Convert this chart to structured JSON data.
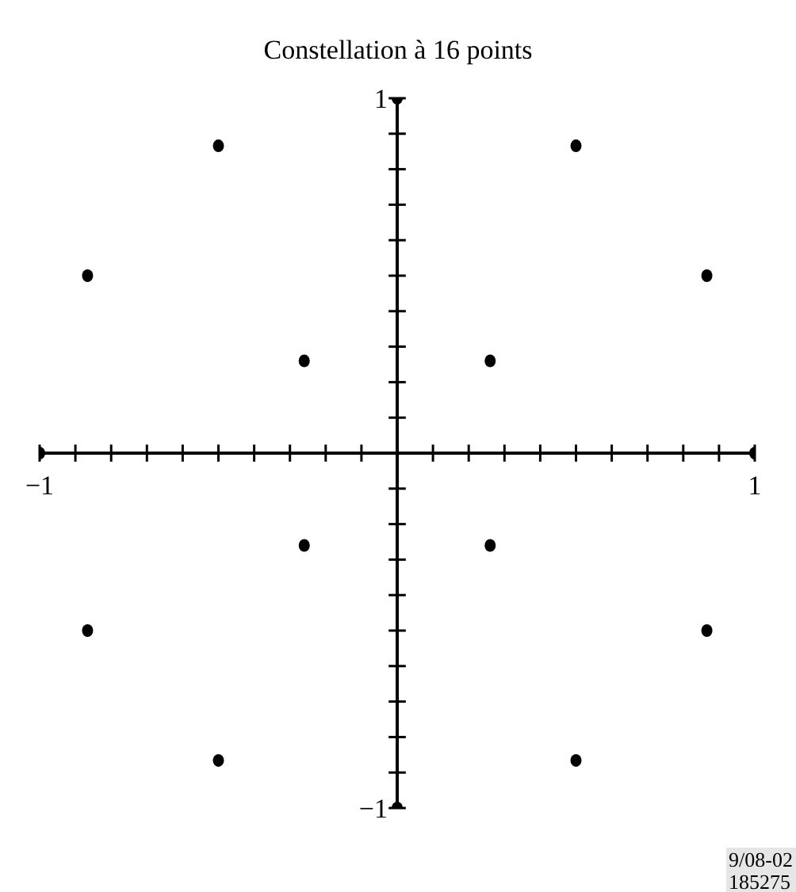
{
  "chart_data": {
    "type": "scatter",
    "title": "Constellation à 16 points",
    "x": [
      0,
      0.5,
      0.866,
      1,
      0.866,
      0.5,
      0,
      -0.5,
      -0.866,
      -1,
      -0.866,
      -0.5,
      0.26,
      0.26,
      -0.26,
      -0.26
    ],
    "values": [
      1,
      0.866,
      0.5,
      0,
      -0.5,
      -0.866,
      -1,
      -0.866,
      -0.5,
      0,
      0.5,
      0.866,
      0.26,
      -0.26,
      -0.26,
      0.26
    ],
    "color": "#000000",
    "marker": "circle",
    "xlim": [
      -1,
      1
    ],
    "ylim": [
      -1,
      1
    ],
    "xticks": [
      {
        "value": -1,
        "label": "−1"
      },
      {
        "value": -0.9,
        "label": null
      },
      {
        "value": -0.8,
        "label": null
      },
      {
        "value": -0.7,
        "label": null
      },
      {
        "value": -0.6,
        "label": null
      },
      {
        "value": -0.5,
        "label": null
      },
      {
        "value": -0.4,
        "label": null
      },
      {
        "value": -0.3,
        "label": null
      },
      {
        "value": -0.2,
        "label": null
      },
      {
        "value": -0.1,
        "label": null
      },
      {
        "value": 0.1,
        "label": null
      },
      {
        "value": 0.2,
        "label": null
      },
      {
        "value": 0.3,
        "label": null
      },
      {
        "value": 0.4,
        "label": null
      },
      {
        "value": 0.5,
        "label": null
      },
      {
        "value": 0.6,
        "label": null
      },
      {
        "value": 0.7,
        "label": null
      },
      {
        "value": 0.8,
        "label": null
      },
      {
        "value": 0.9,
        "label": null
      },
      1
    ],
    "yticks": [
      {
        "value": -1,
        "label": "−1"
      },
      {
        "value": -0.9,
        "label": null
      },
      {
        "value": -0.8,
        "label": null
      },
      {
        "value": -0.7,
        "label": null
      },
      {
        "value": -0.6,
        "label": null
      },
      {
        "value": -0.5,
        "label": null
      },
      {
        "value": -0.4,
        "label": null
      },
      {
        "value": -0.3,
        "label": null
      },
      {
        "value": -0.2,
        "label": null
      },
      {
        "value": -0.1,
        "label": null
      },
      {
        "value": 0.1,
        "label": null
      },
      {
        "value": 0.2,
        "label": null
      },
      {
        "value": 0.3,
        "label": null
      },
      {
        "value": 0.4,
        "label": null
      },
      {
        "value": 0.5,
        "label": null
      },
      {
        "value": 0.6,
        "label": null
      },
      {
        "value": 0.7,
        "label": null
      },
      {
        "value": 0.8,
        "label": null
      },
      {
        "value": 0.9,
        "label": null
      },
      1
    ],
    "grid": false,
    "annotations": [
      "9/08-02\n185275"
    ]
  }
}
